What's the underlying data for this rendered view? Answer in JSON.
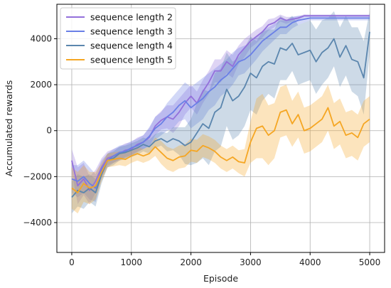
{
  "chart_data": {
    "type": "line",
    "xlabel": "Episode",
    "ylabel": "Accumulated rewards",
    "xlim": [
      -250,
      5250
    ],
    "ylim": [
      -5300,
      5500
    ],
    "xticks": [
      0,
      1000,
      2000,
      3000,
      4000,
      5000
    ],
    "xtick_labels": [
      "0",
      "1000",
      "2000",
      "3000",
      "4000",
      "5000"
    ],
    "yticks": [
      -4000,
      -2000,
      0,
      2000,
      4000
    ],
    "ytick_labels": [
      "−4000",
      "−2000",
      "0",
      "2000",
      "4000"
    ],
    "grid": true,
    "legend_position": "top-left",
    "series": [
      {
        "name": "sequence length 2",
        "color": "#9370DB",
        "x": [
          0,
          100,
          200,
          300,
          400,
          500,
          600,
          700,
          800,
          900,
          1000,
          1100,
          1200,
          1300,
          1400,
          1500,
          1600,
          1700,
          1800,
          1900,
          2000,
          2100,
          2200,
          2300,
          2400,
          2500,
          2600,
          2700,
          2800,
          2900,
          3000,
          3100,
          3200,
          3300,
          3400,
          3500,
          3600,
          3700,
          3800,
          3900,
          4000,
          4100,
          4200,
          4300,
          4400,
          4500,
          4600,
          4700,
          4800,
          4900,
          5000
        ],
        "y": [
          -1300,
          -2400,
          -2100,
          -2600,
          -2200,
          -1600,
          -1200,
          -1100,
          -1000,
          -850,
          -800,
          -600,
          -500,
          -300,
          200,
          450,
          600,
          500,
          800,
          1200,
          1500,
          1200,
          1700,
          2100,
          2600,
          2600,
          3000,
          2800,
          3300,
          3600,
          3900,
          4100,
          4300,
          4600,
          4700,
          4900,
          4800,
          4850,
          4900,
          5000,
          5000,
          5000,
          5000,
          5000,
          5000,
          5000,
          5000,
          5000,
          5000,
          5000,
          5000
        ],
        "band": [
          500,
          800,
          700,
          600,
          500,
          400,
          300,
          300,
          300,
          300,
          300,
          300,
          300,
          400,
          400,
          400,
          500,
          600,
          600,
          500,
          500,
          500,
          500,
          500,
          500,
          500,
          500,
          500,
          400,
          400,
          300,
          300,
          250,
          250,
          200,
          150,
          150,
          100,
          80,
          60,
          50,
          50,
          50,
          50,
          50,
          50,
          50,
          50,
          50,
          50,
          50
        ]
      },
      {
        "name": "sequence length 3",
        "color": "#6A7FE6",
        "x": [
          0,
          100,
          200,
          300,
          400,
          500,
          600,
          700,
          800,
          900,
          1000,
          1100,
          1200,
          1300,
          1400,
          1500,
          1600,
          1700,
          1800,
          1900,
          2000,
          2100,
          2200,
          2300,
          2400,
          2500,
          2600,
          2700,
          2800,
          2900,
          3000,
          3100,
          3200,
          3300,
          3400,
          3500,
          3600,
          3700,
          3800,
          3900,
          4000,
          4100,
          4200,
          4300,
          4400,
          4500,
          4600,
          4700,
          4800,
          4900,
          5000
        ],
        "y": [
          -2100,
          -2200,
          -2000,
          -2300,
          -2500,
          -1700,
          -1300,
          -1100,
          -950,
          -900,
          -750,
          -650,
          -500,
          -250,
          100,
          300,
          600,
          800,
          1100,
          1300,
          1000,
          1200,
          1400,
          1700,
          1900,
          2200,
          2400,
          2700,
          3000,
          3100,
          3300,
          3600,
          3900,
          4100,
          4300,
          4500,
          4500,
          4700,
          4800,
          4850,
          4900,
          4900,
          4900,
          4900,
          4900,
          4900,
          4900,
          4900,
          4900,
          4900,
          4900
        ],
        "band": [
          600,
          700,
          700,
          700,
          600,
          400,
          300,
          300,
          300,
          300,
          300,
          300,
          300,
          400,
          500,
          500,
          600,
          700,
          700,
          800,
          900,
          900,
          900,
          800,
          800,
          700,
          700,
          700,
          600,
          600,
          500,
          500,
          450,
          400,
          350,
          300,
          300,
          250,
          200,
          150,
          100,
          100,
          100,
          100,
          100,
          100,
          100,
          100,
          100,
          100,
          100
        ]
      },
      {
        "name": "sequence length 4",
        "color": "#5B86AE",
        "x": [
          0,
          100,
          200,
          300,
          400,
          500,
          600,
          700,
          800,
          900,
          1000,
          1100,
          1200,
          1300,
          1400,
          1500,
          1600,
          1700,
          1800,
          1900,
          2000,
          2100,
          2200,
          2300,
          2400,
          2500,
          2600,
          2700,
          2800,
          2900,
          3000,
          3100,
          3200,
          3300,
          3400,
          3500,
          3600,
          3700,
          3800,
          3900,
          4000,
          4100,
          4200,
          4300,
          4400,
          4500,
          4600,
          4700,
          4800,
          4900,
          5000
        ],
        "y": [
          -2900,
          -2600,
          -2700,
          -2500,
          -2700,
          -1900,
          -1300,
          -1200,
          -1000,
          -950,
          -850,
          -750,
          -600,
          -700,
          -450,
          -350,
          -500,
          -350,
          -450,
          -650,
          -500,
          -100,
          300,
          100,
          800,
          1000,
          1800,
          1300,
          1500,
          1900,
          2500,
          2300,
          2800,
          3000,
          2900,
          3600,
          3500,
          3800,
          3300,
          3400,
          3500,
          3000,
          3400,
          3600,
          4000,
          3200,
          3700,
          3100,
          3000,
          2300,
          4300
        ],
        "band": [
          700,
          700,
          700,
          600,
          600,
          400,
          300,
          300,
          300,
          300,
          300,
          300,
          300,
          300,
          300,
          300,
          400,
          500,
          600,
          800,
          1000,
          1300,
          1500,
          1600,
          1700,
          1700,
          1600,
          1700,
          1700,
          1700,
          1600,
          1600,
          1500,
          1400,
          1500,
          1400,
          1300,
          1200,
          1300,
          1300,
          1300,
          1400,
          1400,
          1300,
          1200,
          1300,
          1300,
          1400,
          1500,
          1600,
          900
        ]
      },
      {
        "name": "sequence length 5",
        "color": "#F5A623",
        "x": [
          0,
          100,
          200,
          300,
          400,
          500,
          600,
          700,
          800,
          900,
          1000,
          1100,
          1200,
          1300,
          1400,
          1500,
          1600,
          1700,
          1800,
          1900,
          2000,
          2100,
          2200,
          2300,
          2400,
          2500,
          2600,
          2700,
          2800,
          2900,
          3000,
          3100,
          3200,
          3300,
          3400,
          3500,
          3600,
          3700,
          3800,
          3900,
          4000,
          4100,
          4200,
          4300,
          4400,
          4500,
          4600,
          4700,
          4800,
          4900,
          5000
        ],
        "y": [
          -2500,
          -2700,
          -2300,
          -2500,
          -2400,
          -1800,
          -1300,
          -1250,
          -1200,
          -1250,
          -1100,
          -1000,
          -1100,
          -1000,
          -700,
          -950,
          -1200,
          -1300,
          -1150,
          -1100,
          -850,
          -900,
          -650,
          -750,
          -900,
          -1150,
          -1300,
          -1150,
          -1350,
          -1400,
          -500,
          100,
          200,
          -200,
          0,
          800,
          900,
          300,
          700,
          0,
          100,
          300,
          500,
          1000,
          200,
          400,
          -200,
          -100,
          -300,
          300,
          500
        ],
        "band": [
          900,
          900,
          800,
          700,
          600,
          400,
          300,
          300,
          300,
          300,
          300,
          300,
          300,
          300,
          400,
          500,
          500,
          500,
          500,
          500,
          500,
          500,
          500,
          500,
          500,
          500,
          500,
          500,
          500,
          600,
          900,
          1300,
          1400,
          1300,
          1200,
          1100,
          1100,
          1000,
          1000,
          1000,
          1000,
          1000,
          1000,
          1000,
          1000,
          1000,
          1000,
          1000,
          1000,
          1000,
          1000
        ]
      }
    ]
  }
}
